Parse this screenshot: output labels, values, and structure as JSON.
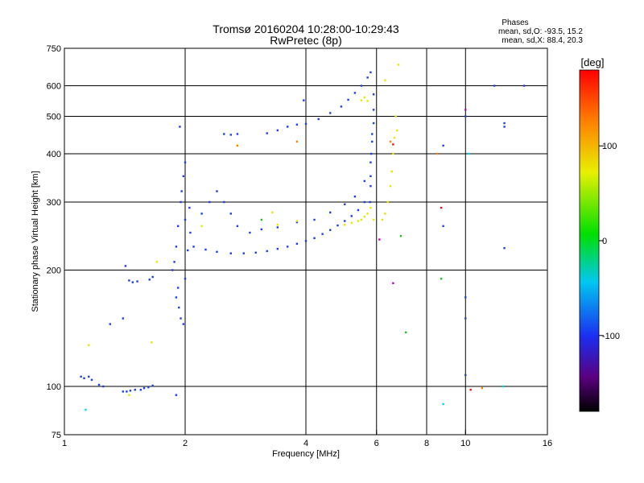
{
  "chart_data": {
    "type": "scatter",
    "title": "Tromsø 20160204 10:28:00-10:29:43",
    "subtitle": "RwPretec (8p)",
    "xlabel": "Frequency [MHz]",
    "ylabel": "Stationary phase Virtual Height [km]",
    "x_scale": "log",
    "y_scale": "log",
    "xlim": [
      1,
      16
    ],
    "ylim": [
      75,
      750
    ],
    "x_ticks": [
      1,
      2,
      4,
      6,
      8,
      10,
      16
    ],
    "y_ticks": [
      75,
      100,
      200,
      300,
      400,
      500,
      600,
      750
    ],
    "x_gridlines": [
      2,
      4,
      6,
      8,
      10
    ],
    "y_gridlines": [
      100,
      200,
      300,
      400,
      500,
      600
    ],
    "grid": true,
    "phases": {
      "title": "Phases",
      "line_o": "mean, sd,O: -93.5, 15.2",
      "line_x": "mean, sd,X:  88.4, 20.3"
    },
    "colorbar": {
      "label": "[deg]",
      "range": [
        -180,
        180
      ],
      "ticks": [
        "100",
        "0",
        "-100"
      ],
      "tick_values": [
        100,
        0,
        -100
      ]
    },
    "series": [
      {
        "color": "#1a3ee8",
        "phase": -93.5,
        "points": [
          [
            1.1,
            106
          ],
          [
            1.12,
            105
          ],
          [
            1.15,
            106
          ],
          [
            1.17,
            104
          ],
          [
            1.22,
            101
          ],
          [
            1.25,
            100
          ],
          [
            1.4,
            97
          ],
          [
            1.43,
            97
          ],
          [
            1.46,
            97.5
          ],
          [
            1.5,
            98
          ],
          [
            1.55,
            98
          ],
          [
            1.58,
            99
          ],
          [
            1.62,
            99.5
          ],
          [
            1.66,
            100.5
          ],
          [
            1.45,
            188
          ],
          [
            1.48,
            186
          ],
          [
            1.52,
            187
          ],
          [
            1.42,
            205
          ],
          [
            1.63,
            189
          ],
          [
            1.66,
            192
          ],
          [
            1.3,
            145
          ],
          [
            1.4,
            150
          ],
          [
            1.86,
            200
          ],
          [
            1.88,
            210
          ],
          [
            1.9,
            230
          ],
          [
            1.92,
            260
          ],
          [
            1.95,
            300
          ],
          [
            1.96,
            320
          ],
          [
            1.98,
            350
          ],
          [
            2.0,
            380
          ],
          [
            1.92,
            180
          ],
          [
            1.9,
            170
          ],
          [
            1.93,
            160
          ],
          [
            1.95,
            150
          ],
          [
            1.98,
            145
          ],
          [
            2.0,
            190
          ],
          [
            2.03,
            225
          ],
          [
            2.06,
            250
          ],
          [
            1.94,
            470
          ],
          [
            2.0,
            270
          ],
          [
            2.05,
            290
          ],
          [
            2.1,
            230
          ],
          [
            2.2,
            280
          ],
          [
            2.3,
            300
          ],
          [
            2.4,
            320
          ],
          [
            2.5,
            300
          ],
          [
            2.6,
            280
          ],
          [
            2.7,
            260
          ],
          [
            2.25,
            226
          ],
          [
            2.4,
            223
          ],
          [
            2.6,
            221
          ],
          [
            2.8,
            221
          ],
          [
            3.0,
            222
          ],
          [
            3.2,
            224
          ],
          [
            3.4,
            227
          ],
          [
            3.6,
            230
          ],
          [
            3.8,
            234
          ],
          [
            4.0,
            238
          ],
          [
            4.2,
            242
          ],
          [
            4.4,
            248
          ],
          [
            4.6,
            254
          ],
          [
            4.8,
            261
          ],
          [
            5.0,
            268
          ],
          [
            5.2,
            276
          ],
          [
            5.4,
            286
          ],
          [
            5.6,
            300
          ],
          [
            5.8,
            330
          ],
          [
            2.9,
            250
          ],
          [
            3.1,
            255
          ],
          [
            3.4,
            258
          ],
          [
            3.8,
            266
          ],
          [
            4.2,
            270
          ],
          [
            4.6,
            282
          ],
          [
            5.0,
            296
          ],
          [
            5.3,
            310
          ],
          [
            5.6,
            340
          ],
          [
            5.8,
            380
          ],
          [
            5.85,
            430
          ],
          [
            5.9,
            480
          ],
          [
            5.78,
            300
          ],
          [
            5.8,
            350
          ],
          [
            5.82,
            400
          ],
          [
            5.85,
            450
          ],
          [
            5.9,
            520
          ],
          [
            5.9,
            570
          ],
          [
            2.5,
            450
          ],
          [
            2.6,
            448
          ],
          [
            2.7,
            450
          ],
          [
            3.2,
            452
          ],
          [
            3.4,
            460
          ],
          [
            3.6,
            470
          ],
          [
            3.8,
            476
          ],
          [
            4.0,
            478
          ],
          [
            4.3,
            492
          ],
          [
            4.6,
            510
          ],
          [
            4.9,
            530
          ],
          [
            5.1,
            552
          ],
          [
            5.3,
            575
          ],
          [
            5.5,
            600
          ],
          [
            5.7,
            630
          ],
          [
            5.8,
            650
          ],
          [
            3.95,
            550
          ],
          [
            8.8,
            420
          ],
          [
            8.8,
            260
          ],
          [
            10.0,
            500
          ],
          [
            10.0,
            170
          ],
          [
            10.0,
            150
          ],
          [
            10.0,
            107
          ],
          [
            11.8,
            600
          ],
          [
            12.5,
            480
          ],
          [
            12.5,
            470
          ],
          [
            12.5,
            228
          ],
          [
            14.0,
            600
          ],
          [
            1.9,
            95
          ]
        ]
      },
      {
        "color": "#e6e600",
        "phase": 88.4,
        "points": [
          [
            5.0,
            262
          ],
          [
            5.2,
            265
          ],
          [
            5.4,
            268
          ],
          [
            5.5,
            270
          ],
          [
            5.6,
            275
          ],
          [
            5.7,
            280
          ],
          [
            5.8,
            290
          ],
          [
            5.9,
            270
          ],
          [
            6.3,
            280
          ],
          [
            6.4,
            300
          ],
          [
            6.5,
            330
          ],
          [
            6.55,
            360
          ],
          [
            6.6,
            400
          ],
          [
            6.65,
            440
          ],
          [
            6.7,
            500
          ],
          [
            6.75,
            460
          ],
          [
            5.5,
            550
          ],
          [
            5.6,
            560
          ],
          [
            5.7,
            548
          ],
          [
            3.8,
            268
          ],
          [
            3.4,
            262
          ],
          [
            3.3,
            282
          ],
          [
            6.8,
            680
          ],
          [
            6.3,
            620
          ],
          [
            1.15,
            128
          ],
          [
            1.45,
            95
          ],
          [
            1.7,
            210
          ],
          [
            1.65,
            130
          ],
          [
            2.2,
            260
          ],
          [
            2.7,
            420
          ],
          [
            6.2,
            270
          ]
        ]
      },
      {
        "color": "#ff7f00",
        "phase": 150,
        "points": [
          [
            2.7,
            420
          ],
          [
            3.8,
            430
          ],
          [
            6.5,
            430
          ],
          [
            8.5,
            400
          ],
          [
            11,
            99
          ]
        ]
      },
      {
        "color": "#20c020",
        "phase": 10,
        "points": [
          [
            3.1,
            270
          ],
          [
            6.9,
            245
          ],
          [
            7.1,
            138
          ],
          [
            8.7,
            190
          ]
        ]
      },
      {
        "color": "#00d8f0",
        "phase": -40,
        "points": [
          [
            1.13,
            87
          ],
          [
            8.8,
            90
          ],
          [
            12.4,
            100
          ],
          [
            10.2,
            400
          ]
        ]
      },
      {
        "color": "#c000c0",
        "phase": -150,
        "points": [
          [
            6.6,
            185
          ],
          [
            6.1,
            240
          ],
          [
            10.0,
            520
          ]
        ]
      },
      {
        "color": "#ee1111",
        "phase": 170,
        "points": [
          [
            6.6,
            423
          ],
          [
            8.7,
            290
          ],
          [
            10.3,
            98
          ]
        ]
      }
    ]
  }
}
